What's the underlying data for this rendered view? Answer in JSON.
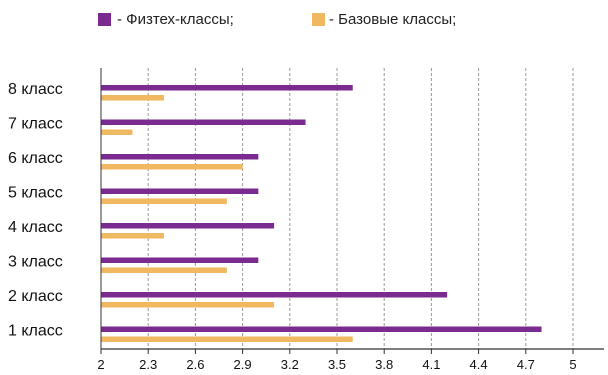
{
  "chart_data": {
    "type": "bar",
    "orientation": "horizontal",
    "categories": [
      "8 класс",
      "7 класс",
      "6 класс",
      "5 класс",
      "4 класс",
      "3 класс",
      "2 класс",
      "1 класс"
    ],
    "series": [
      {
        "name": "- Физтех-классы;",
        "color": "#7b2a8f",
        "values": [
          3.6,
          3.3,
          3.0,
          3.0,
          3.1,
          3.0,
          4.2,
          4.8
        ]
      },
      {
        "name": "- Базовые классы;",
        "color": "#f0b860",
        "values": [
          2.4,
          2.2,
          2.9,
          2.8,
          2.4,
          2.8,
          3.1,
          3.6
        ]
      }
    ],
    "x_ticks": [
      "2",
      "2.3",
      "2.6",
      "2.9",
      "3.2",
      "3.5",
      "3.8",
      "4.1",
      "4.4",
      "4.7",
      "5"
    ],
    "xlim": [
      2,
      5
    ],
    "grid": "vertical dashed",
    "legend": "top"
  }
}
